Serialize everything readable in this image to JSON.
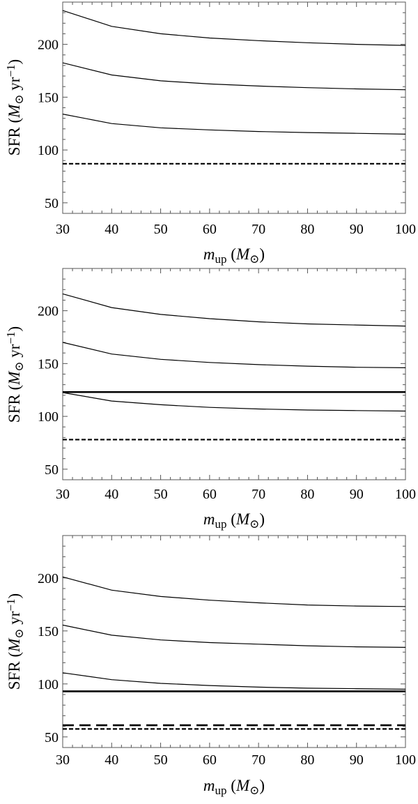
{
  "chart_data": [
    {
      "type": "line",
      "x": [
        30,
        40,
        50,
        60,
        70,
        80,
        90,
        100
      ],
      "xlim": [
        30,
        100
      ],
      "ylim": [
        40,
        240
      ],
      "xticks": [
        "30",
        "40",
        "50",
        "60",
        "70",
        "80",
        "90",
        "100"
      ],
      "yticks": [
        "50",
        "100",
        "150",
        "200"
      ],
      "xlabel": "m_up (M_⊙)",
      "ylabel": "SFR (M_⊙ yr^−1)",
      "series": [
        {
          "values": [
            232,
            217,
            210,
            206,
            203.5,
            201.5,
            200,
            199
          ]
        },
        {
          "values": [
            182.5,
            171,
            165.5,
            162.5,
            160.5,
            159,
            157.8,
            157
          ]
        },
        {
          "values": [
            134,
            125,
            121,
            119,
            117.5,
            116.5,
            115.8,
            115
          ]
        }
      ],
      "hlines": [
        {
          "y": 87,
          "style": "dotdash"
        }
      ]
    },
    {
      "type": "line",
      "x": [
        30,
        40,
        50,
        60,
        70,
        80,
        90,
        100
      ],
      "xlim": [
        30,
        100
      ],
      "ylim": [
        40,
        240
      ],
      "xticks": [
        "30",
        "40",
        "50",
        "60",
        "70",
        "80",
        "90",
        "100"
      ],
      "yticks": [
        "50",
        "100",
        "150",
        "200"
      ],
      "xlabel": "m_up (M_⊙)",
      "ylabel": "SFR (M_⊙ yr^−1)",
      "series": [
        {
          "values": [
            216,
            203,
            196.5,
            192.5,
            189.5,
            187.5,
            186.5,
            185.5
          ]
        },
        {
          "values": [
            170,
            159,
            154,
            151,
            149,
            147.5,
            146.5,
            146
          ]
        },
        {
          "values": [
            122.5,
            114.5,
            111,
            108.5,
            107,
            106,
            105.5,
            105
          ]
        }
      ],
      "hlines": [
        {
          "y": 123,
          "style": "solid"
        },
        {
          "y": 78,
          "style": "dotdash"
        }
      ]
    },
    {
      "type": "line",
      "x": [
        30,
        40,
        50,
        60,
        70,
        80,
        90,
        100
      ],
      "xlim": [
        30,
        100
      ],
      "ylim": [
        40,
        240
      ],
      "xticks": [
        "30",
        "40",
        "50",
        "60",
        "70",
        "80",
        "90",
        "100"
      ],
      "yticks": [
        "50",
        "100",
        "150",
        "200"
      ],
      "xlabel": "m_up (M_⊙)",
      "ylabel": "SFR (M_⊙ yr^−1)",
      "series": [
        {
          "values": [
            201,
            188.5,
            182.5,
            179,
            176.5,
            174.5,
            173.5,
            173
          ]
        },
        {
          "values": [
            155.5,
            146,
            141.5,
            139,
            137.5,
            136,
            135,
            134.5
          ]
        },
        {
          "values": [
            110.5,
            104,
            100.5,
            98.5,
            97,
            96,
            95.5,
            95
          ]
        }
      ],
      "hlines": [
        {
          "y": 93,
          "style": "solid"
        },
        {
          "y": 61,
          "style": "longdash"
        },
        {
          "y": 57.5,
          "style": "dotdash"
        }
      ]
    }
  ]
}
